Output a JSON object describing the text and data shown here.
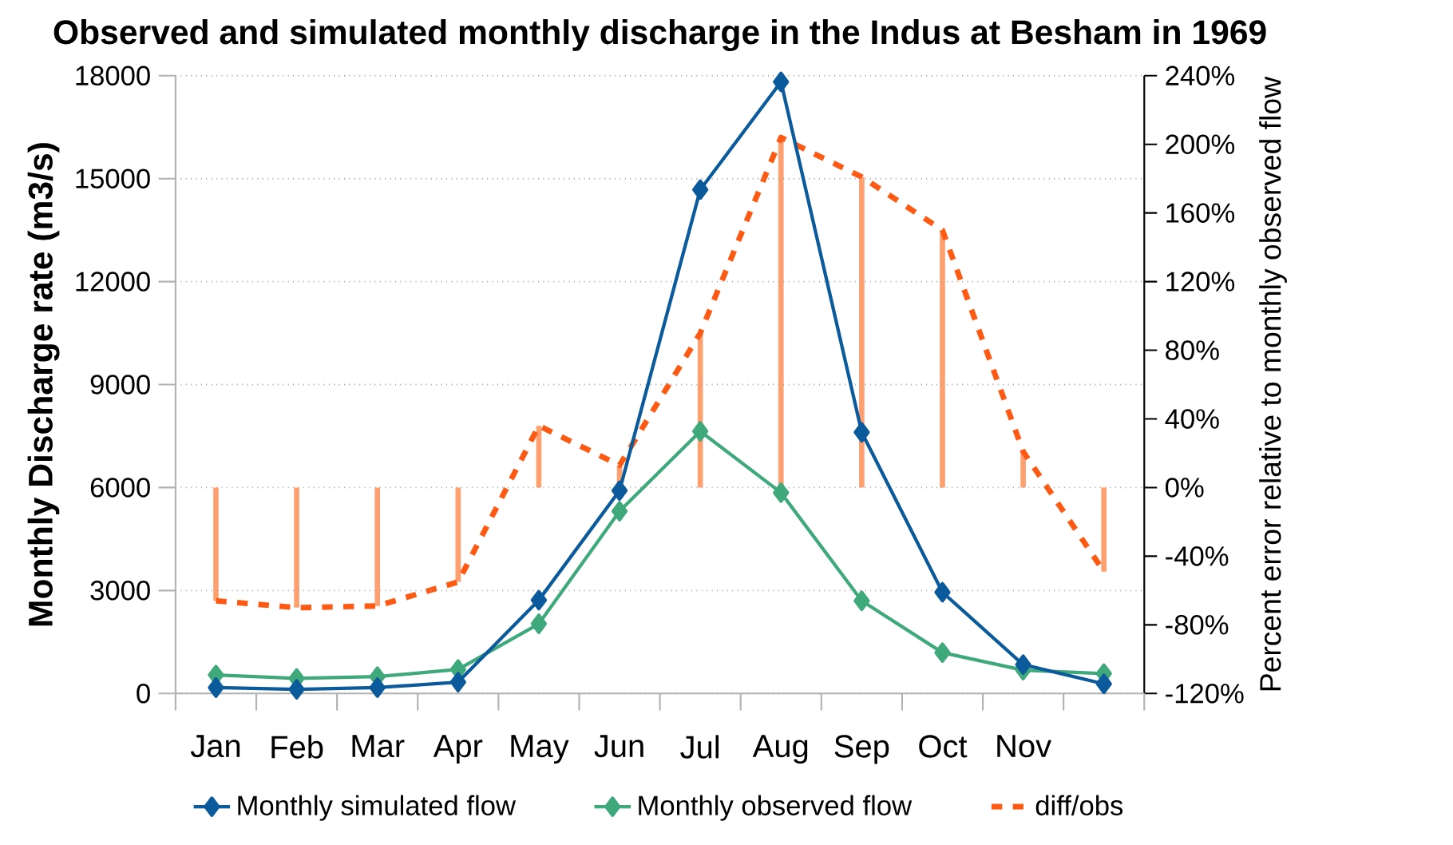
{
  "chart_data": {
    "type": "line",
    "title": "Observed and simulated monthly discharge in the Indus at Besham in 1969",
    "categories": [
      "Jan",
      "Feb",
      "Mar",
      "Apr",
      "May",
      "Jun",
      "Jul",
      "Aug",
      "Sep",
      "Oct",
      "Nov",
      null
    ],
    "series": [
      {
        "name": "Monthly simulated flow",
        "color": "#0b5a9c",
        "marker": "diamond",
        "line_style": "solid",
        "values": [
          170,
          120,
          170,
          330,
          2720,
          5910,
          14680,
          17820,
          7610,
          2950,
          840,
          280
        ]
      },
      {
        "name": "Monthly observed flow",
        "color": "#3fa97c",
        "marker": "diamond",
        "line_style": "solid",
        "values": [
          540,
          440,
          490,
          700,
          2030,
          5310,
          7640,
          5850,
          2700,
          1190,
          680,
          580
        ]
      },
      {
        "name": "diff/obs",
        "color": "#ff5a14",
        "marker": "none",
        "line_style": "dashed",
        "axis": "y2",
        "values": [
          -66,
          -70,
          -69,
          -55,
          36,
          13,
          90,
          204,
          181,
          150,
          21,
          -49
        ]
      },
      {
        "type": "bar",
        "color": "#ffa070",
        "axis": "y2",
        "values": [
          -66,
          -70,
          -69,
          -55,
          36,
          13,
          90,
          204,
          181,
          150,
          21,
          -49
        ]
      }
    ],
    "ylabel": "Monthly Discharge rate (m3/s)",
    "y2label": "Percent error relative to monthly observed flow",
    "ylim": [
      0,
      18000
    ],
    "yticks": [
      0,
      3000,
      6000,
      9000,
      12000,
      15000,
      18000
    ],
    "y2lim": [
      -120,
      240
    ],
    "y2ticks": [
      {
        "value": -120,
        "label": "-120%"
      },
      {
        "value": -80,
        "label": "-80%"
      },
      {
        "value": -40,
        "label": "-40%"
      },
      {
        "value": 0,
        "label": "0%"
      },
      {
        "value": 40,
        "label": "40%"
      },
      {
        "value": 80,
        "label": "80%"
      },
      {
        "value": 120,
        "label": "120%"
      },
      {
        "value": 160,
        "label": "160%"
      },
      {
        "value": 200,
        "label": "200%"
      },
      {
        "value": 240,
        "label": "240%"
      }
    ],
    "grid": "y",
    "legend": "bottom"
  }
}
